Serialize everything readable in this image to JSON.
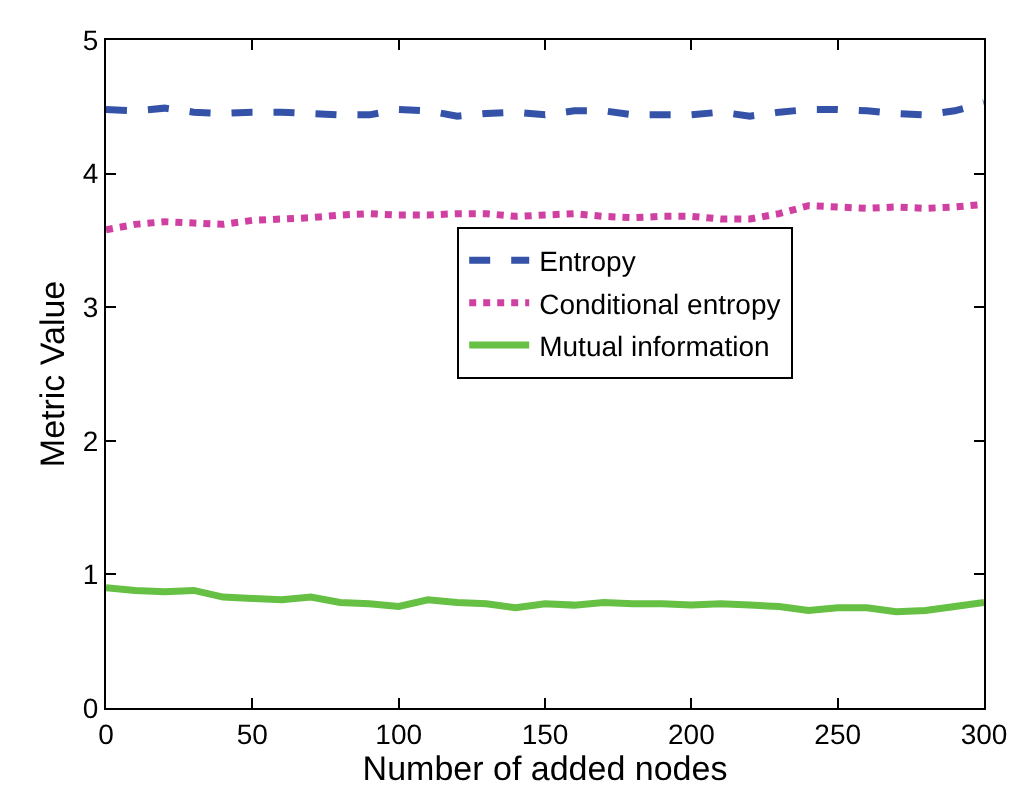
{
  "chart_data": {
    "type": "line",
    "xlabel": "Number of added nodes",
    "ylabel": "Metric Value",
    "x": [
      0,
      10,
      20,
      30,
      40,
      50,
      60,
      70,
      80,
      90,
      100,
      110,
      120,
      130,
      140,
      150,
      160,
      170,
      180,
      190,
      200,
      210,
      220,
      230,
      240,
      250,
      260,
      270,
      280,
      290,
      300
    ],
    "series": [
      {
        "name": "Entropy",
        "color": "#3352a8",
        "line_style": "dashed",
        "values": [
          4.48,
          4.47,
          4.49,
          4.46,
          4.45,
          4.46,
          4.46,
          4.45,
          4.44,
          4.44,
          4.48,
          4.47,
          4.43,
          4.45,
          4.46,
          4.44,
          4.47,
          4.47,
          4.44,
          4.44,
          4.44,
          4.46,
          4.43,
          4.46,
          4.48,
          4.48,
          4.47,
          4.45,
          4.44,
          4.47,
          4.53
        ]
      },
      {
        "name": "Conditional entropy",
        "color": "#d040a0",
        "line_style": "dotted",
        "values": [
          3.58,
          3.62,
          3.64,
          3.63,
          3.62,
          3.65,
          3.66,
          3.67,
          3.69,
          3.7,
          3.69,
          3.69,
          3.7,
          3.7,
          3.68,
          3.69,
          3.7,
          3.68,
          3.67,
          3.68,
          3.68,
          3.66,
          3.66,
          3.7,
          3.76,
          3.75,
          3.74,
          3.75,
          3.74,
          3.75,
          3.77
        ]
      },
      {
        "name": "Mutual information",
        "color": "#66c044",
        "line_style": "solid",
        "values": [
          0.9,
          0.88,
          0.87,
          0.88,
          0.83,
          0.82,
          0.81,
          0.83,
          0.79,
          0.78,
          0.76,
          0.81,
          0.79,
          0.78,
          0.75,
          0.78,
          0.77,
          0.79,
          0.78,
          0.78,
          0.77,
          0.78,
          0.77,
          0.76,
          0.73,
          0.75,
          0.75,
          0.72,
          0.73,
          0.76,
          0.79
        ]
      }
    ],
    "xlim": [
      0,
      300
    ],
    "xticks": [
      0,
      50,
      100,
      150,
      200,
      250,
      300
    ],
    "ylim": [
      0,
      5
    ],
    "yticks": [
      0,
      1,
      2,
      3,
      4,
      5
    ],
    "legend": "right"
  }
}
